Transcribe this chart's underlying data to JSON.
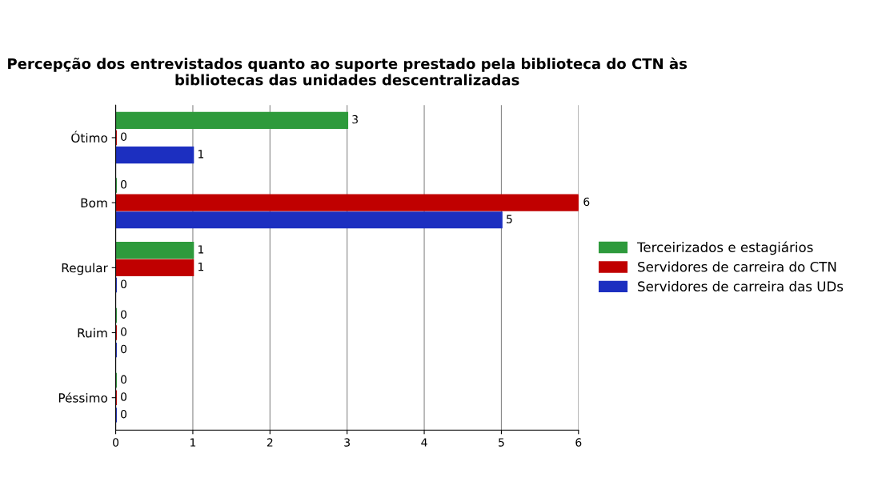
{
  "chart_data": {
    "type": "bar",
    "orientation": "horizontal",
    "title": "Percepção dos entrevistados quanto ao suporte prestado pela biblioteca do CTN às bibliotecas das unidades descentralizadas",
    "categories": [
      "Ótimo",
      "Bom",
      "Regular",
      "Ruim",
      "Péssimo"
    ],
    "series": [
      {
        "name": "Terceirizados e estagiários",
        "color": "#2e9a3c",
        "values": [
          3,
          0,
          1,
          0,
          0
        ]
      },
      {
        "name": "Servidores de carreira do CTN",
        "color": "#c00000",
        "values": [
          0,
          6,
          1,
          0,
          0
        ]
      },
      {
        "name": "Servidores de carreira das UDs",
        "color": "#1c2fc0",
        "values": [
          1,
          5,
          0,
          0,
          0
        ]
      }
    ],
    "xlim": [
      0,
      6
    ],
    "xticks": [
      0,
      1,
      2,
      3,
      4,
      5,
      6
    ],
    "grid": "x",
    "legend": "right",
    "data_labels": true
  }
}
